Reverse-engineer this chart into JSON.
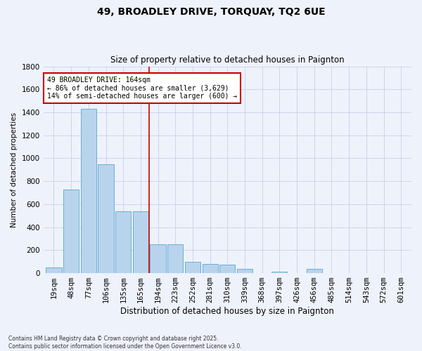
{
  "title1": "49, BROADLEY DRIVE, TORQUAY, TQ2 6UE",
  "title2": "Size of property relative to detached houses in Paignton",
  "xlabel": "Distribution of detached houses by size in Paignton",
  "ylabel": "Number of detached properties",
  "categories": [
    "19sqm",
    "48sqm",
    "77sqm",
    "106sqm",
    "135sqm",
    "165sqm",
    "194sqm",
    "223sqm",
    "252sqm",
    "281sqm",
    "310sqm",
    "339sqm",
    "368sqm",
    "397sqm",
    "426sqm",
    "456sqm",
    "485sqm",
    "514sqm",
    "543sqm",
    "572sqm",
    "601sqm"
  ],
  "values": [
    50,
    730,
    1430,
    950,
    540,
    540,
    250,
    250,
    100,
    80,
    75,
    35,
    0,
    15,
    0,
    40,
    0,
    0,
    0,
    0,
    0
  ],
  "bar_color": "#b8d4ed",
  "bar_edge_color": "#6aaed6",
  "background_color": "#eef2fb",
  "grid_color": "#c8d0e8",
  "red_line_x": 5.5,
  "annotation_text": "49 BROADLEY DRIVE: 164sqm\n← 86% of detached houses are smaller (3,629)\n14% of semi-detached houses are larger (600) →",
  "annotation_box_color": "#ffffff",
  "annotation_box_edge": "#cc0000",
  "ylim": [
    0,
    1800
  ],
  "yticks": [
    0,
    200,
    400,
    600,
    800,
    1000,
    1200,
    1400,
    1600,
    1800
  ],
  "footer_text": "Contains HM Land Registry data © Crown copyright and database right 2025.\nContains public sector information licensed under the Open Government Licence v3.0."
}
